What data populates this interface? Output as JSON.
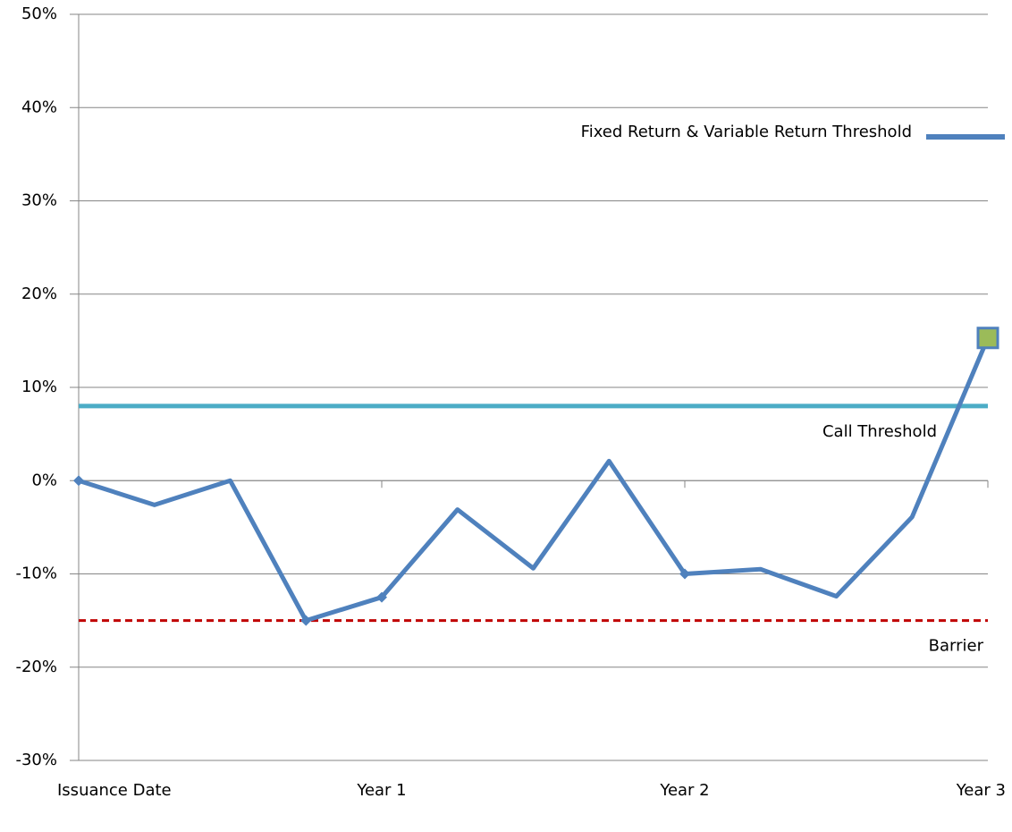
{
  "chart_data": {
    "type": "line",
    "categories": [
      "Issuance Date",
      null,
      null,
      null,
      "Year 1",
      null,
      null,
      null,
      "Year 2",
      null,
      null,
      null,
      "Year 3"
    ],
    "series": [
      {
        "name": "Fixed Return & Variable Return Threshold",
        "color": "#4f81bd",
        "values": [
          0,
          -2.6,
          0,
          -15,
          -12.5,
          -3.1,
          -9.4,
          2.1,
          -10,
          -9.5,
          -12.4,
          -3.9,
          15.3
        ],
        "end_marker_color": "#9bbb59"
      }
    ],
    "reference_lines": [
      {
        "label": "Call Threshold",
        "value": 8,
        "color": "#4bacc6",
        "style": "solid"
      },
      {
        "label": "Barrier",
        "value": -15,
        "color": "#c00000",
        "style": "dashed"
      }
    ],
    "ylim": [
      -30,
      50
    ],
    "yticks": [
      {
        "value": -30,
        "label": "-30%"
      },
      {
        "value": -20,
        "label": "-20%"
      },
      {
        "value": -10,
        "label": "-10%"
      },
      {
        "value": 0,
        "label": "0%"
      },
      {
        "value": 10,
        "label": "10%"
      },
      {
        "value": 20,
        "label": "20%"
      },
      {
        "value": 30,
        "label": "30%"
      },
      {
        "value": 40,
        "label": "40%"
      },
      {
        "value": 50,
        "label": "50%"
      }
    ],
    "grid": true,
    "legend": "upper right"
  }
}
